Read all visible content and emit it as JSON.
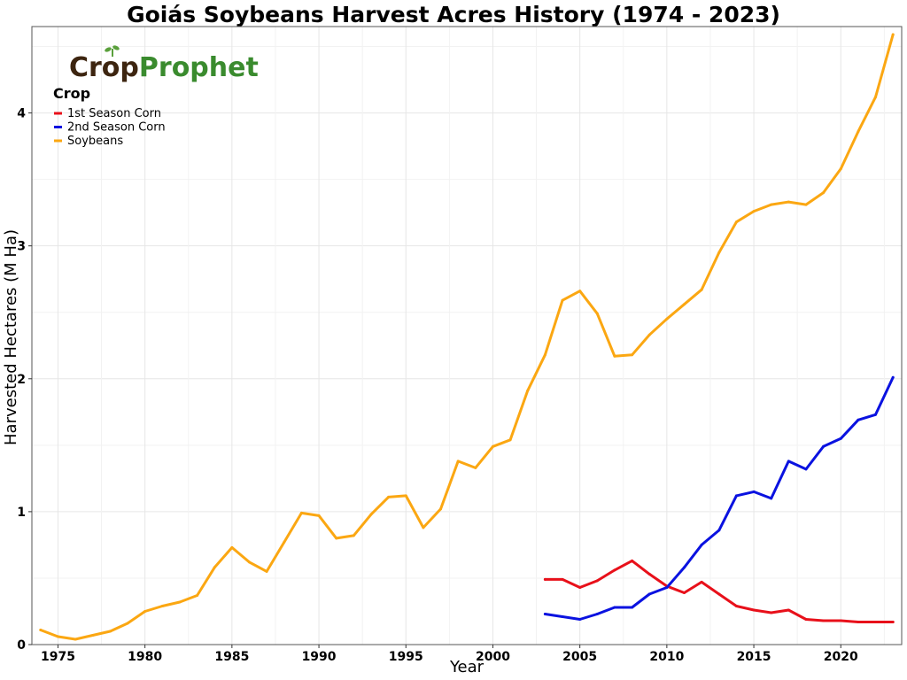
{
  "chart_data": {
    "type": "line",
    "title": "Goiás Soybeans Harvest Acres History (1974 - 2023)",
    "xlabel": "Year",
    "ylabel": "Harvested Hectares (M Ha)",
    "xlim": [
      1973.5,
      2023.5
    ],
    "ylim": [
      0,
      4.65
    ],
    "x_ticks": [
      1975,
      1980,
      1985,
      1990,
      1995,
      2000,
      2005,
      2010,
      2015,
      2020
    ],
    "y_ticks": [
      0,
      1,
      2,
      3,
      4
    ],
    "grid": true,
    "legend": {
      "title": "Crop",
      "placement": "top-left",
      "entries": [
        "1st Season Corn",
        "2nd Season Corn",
        "Soybeans"
      ]
    },
    "series": [
      {
        "name": "1st Season Corn",
        "color": "#e8101a",
        "x": [
          2003,
          2004,
          2005,
          2006,
          2007,
          2008,
          2009,
          2010,
          2011,
          2012,
          2013,
          2014,
          2015,
          2016,
          2017,
          2018,
          2019,
          2020,
          2021,
          2022,
          2023
        ],
        "values": [
          0.49,
          0.49,
          0.43,
          0.48,
          0.56,
          0.63,
          0.53,
          0.44,
          0.39,
          0.47,
          0.38,
          0.29,
          0.26,
          0.24,
          0.26,
          0.19,
          0.18,
          0.18,
          0.17,
          0.17,
          0.17
        ]
      },
      {
        "name": "2nd Season Corn",
        "color": "#0a12e0",
        "x": [
          2003,
          2004,
          2005,
          2006,
          2007,
          2008,
          2009,
          2010,
          2011,
          2012,
          2013,
          2014,
          2015,
          2016,
          2017,
          2018,
          2019,
          2020,
          2021,
          2022,
          2023
        ],
        "values": [
          0.23,
          0.21,
          0.19,
          0.23,
          0.28,
          0.28,
          0.38,
          0.43,
          0.58,
          0.75,
          0.86,
          1.12,
          1.15,
          1.1,
          1.38,
          1.32,
          1.49,
          1.55,
          1.69,
          1.73,
          2.01
        ]
      },
      {
        "name": "Soybeans",
        "color": "#fba712",
        "x": [
          1974,
          1975,
          1976,
          1977,
          1978,
          1979,
          1980,
          1981,
          1982,
          1983,
          1984,
          1985,
          1986,
          1987,
          1988,
          1989,
          1990,
          1991,
          1992,
          1993,
          1994,
          1995,
          1996,
          1997,
          1998,
          1999,
          2000,
          2001,
          2002,
          2003,
          2004,
          2005,
          2006,
          2007,
          2008,
          2009,
          2010,
          2011,
          2012,
          2013,
          2014,
          2015,
          2016,
          2017,
          2018,
          2019,
          2020,
          2021,
          2022,
          2023
        ],
        "values": [
          0.11,
          0.06,
          0.04,
          0.07,
          0.1,
          0.16,
          0.25,
          0.29,
          0.32,
          0.37,
          0.58,
          0.73,
          0.62,
          0.55,
          0.77,
          0.99,
          0.97,
          0.8,
          0.82,
          0.98,
          1.11,
          1.12,
          0.88,
          1.02,
          1.38,
          1.33,
          1.49,
          1.54,
          1.91,
          2.18,
          2.59,
          2.66,
          2.49,
          2.17,
          2.18,
          2.33,
          2.45,
          2.56,
          2.67,
          2.95,
          3.18,
          3.26,
          3.31,
          3.33,
          3.31,
          3.4,
          3.58,
          3.86,
          4.12,
          4.59
        ]
      }
    ]
  },
  "logo": {
    "text_crop": "Crop",
    "text_prophet": "Prophet",
    "color_crop": "#3d2510",
    "color_prophet": "#3a8b2e",
    "leaf_color": "#5aa03c"
  }
}
